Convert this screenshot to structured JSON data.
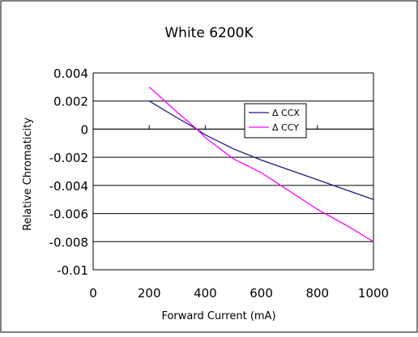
{
  "chart_data": {
    "type": "line",
    "title": "White 6200K",
    "xlabel": "Forward Current (mA)",
    "ylabel": "Relative Chromaticity",
    "xlim": [
      0,
      1000
    ],
    "ylim": [
      -0.01,
      0.004
    ],
    "x_ticks": [
      "0",
      "200",
      "400",
      "600",
      "800",
      "1000"
    ],
    "y_ticks": [
      "0.004",
      "0.002",
      "0",
      "-0.002",
      "-0.004",
      "-0.006",
      "-0.008",
      "-0.01"
    ],
    "grid": "horizontal",
    "legend_position": "top-right",
    "series": [
      {
        "name": "Δ CCX",
        "color": "#1a1a80",
        "x": [
          200,
          300,
          370,
          400,
          500,
          600,
          700,
          800,
          900,
          1000
        ],
        "y": [
          0.002,
          0.0008,
          0.0,
          -0.0004,
          -0.0014,
          -0.0022,
          -0.0029,
          -0.0036,
          -0.0043,
          -0.005
        ]
      },
      {
        "name": "Δ CCY",
        "color": "#ff00ff",
        "x": [
          200,
          300,
          370,
          400,
          500,
          600,
          700,
          800,
          900,
          1000
        ],
        "y": [
          0.003,
          0.0012,
          0.0,
          -0.0006,
          -0.0021,
          -0.0031,
          -0.0044,
          -0.0057,
          -0.0068,
          -0.008
        ]
      }
    ]
  }
}
